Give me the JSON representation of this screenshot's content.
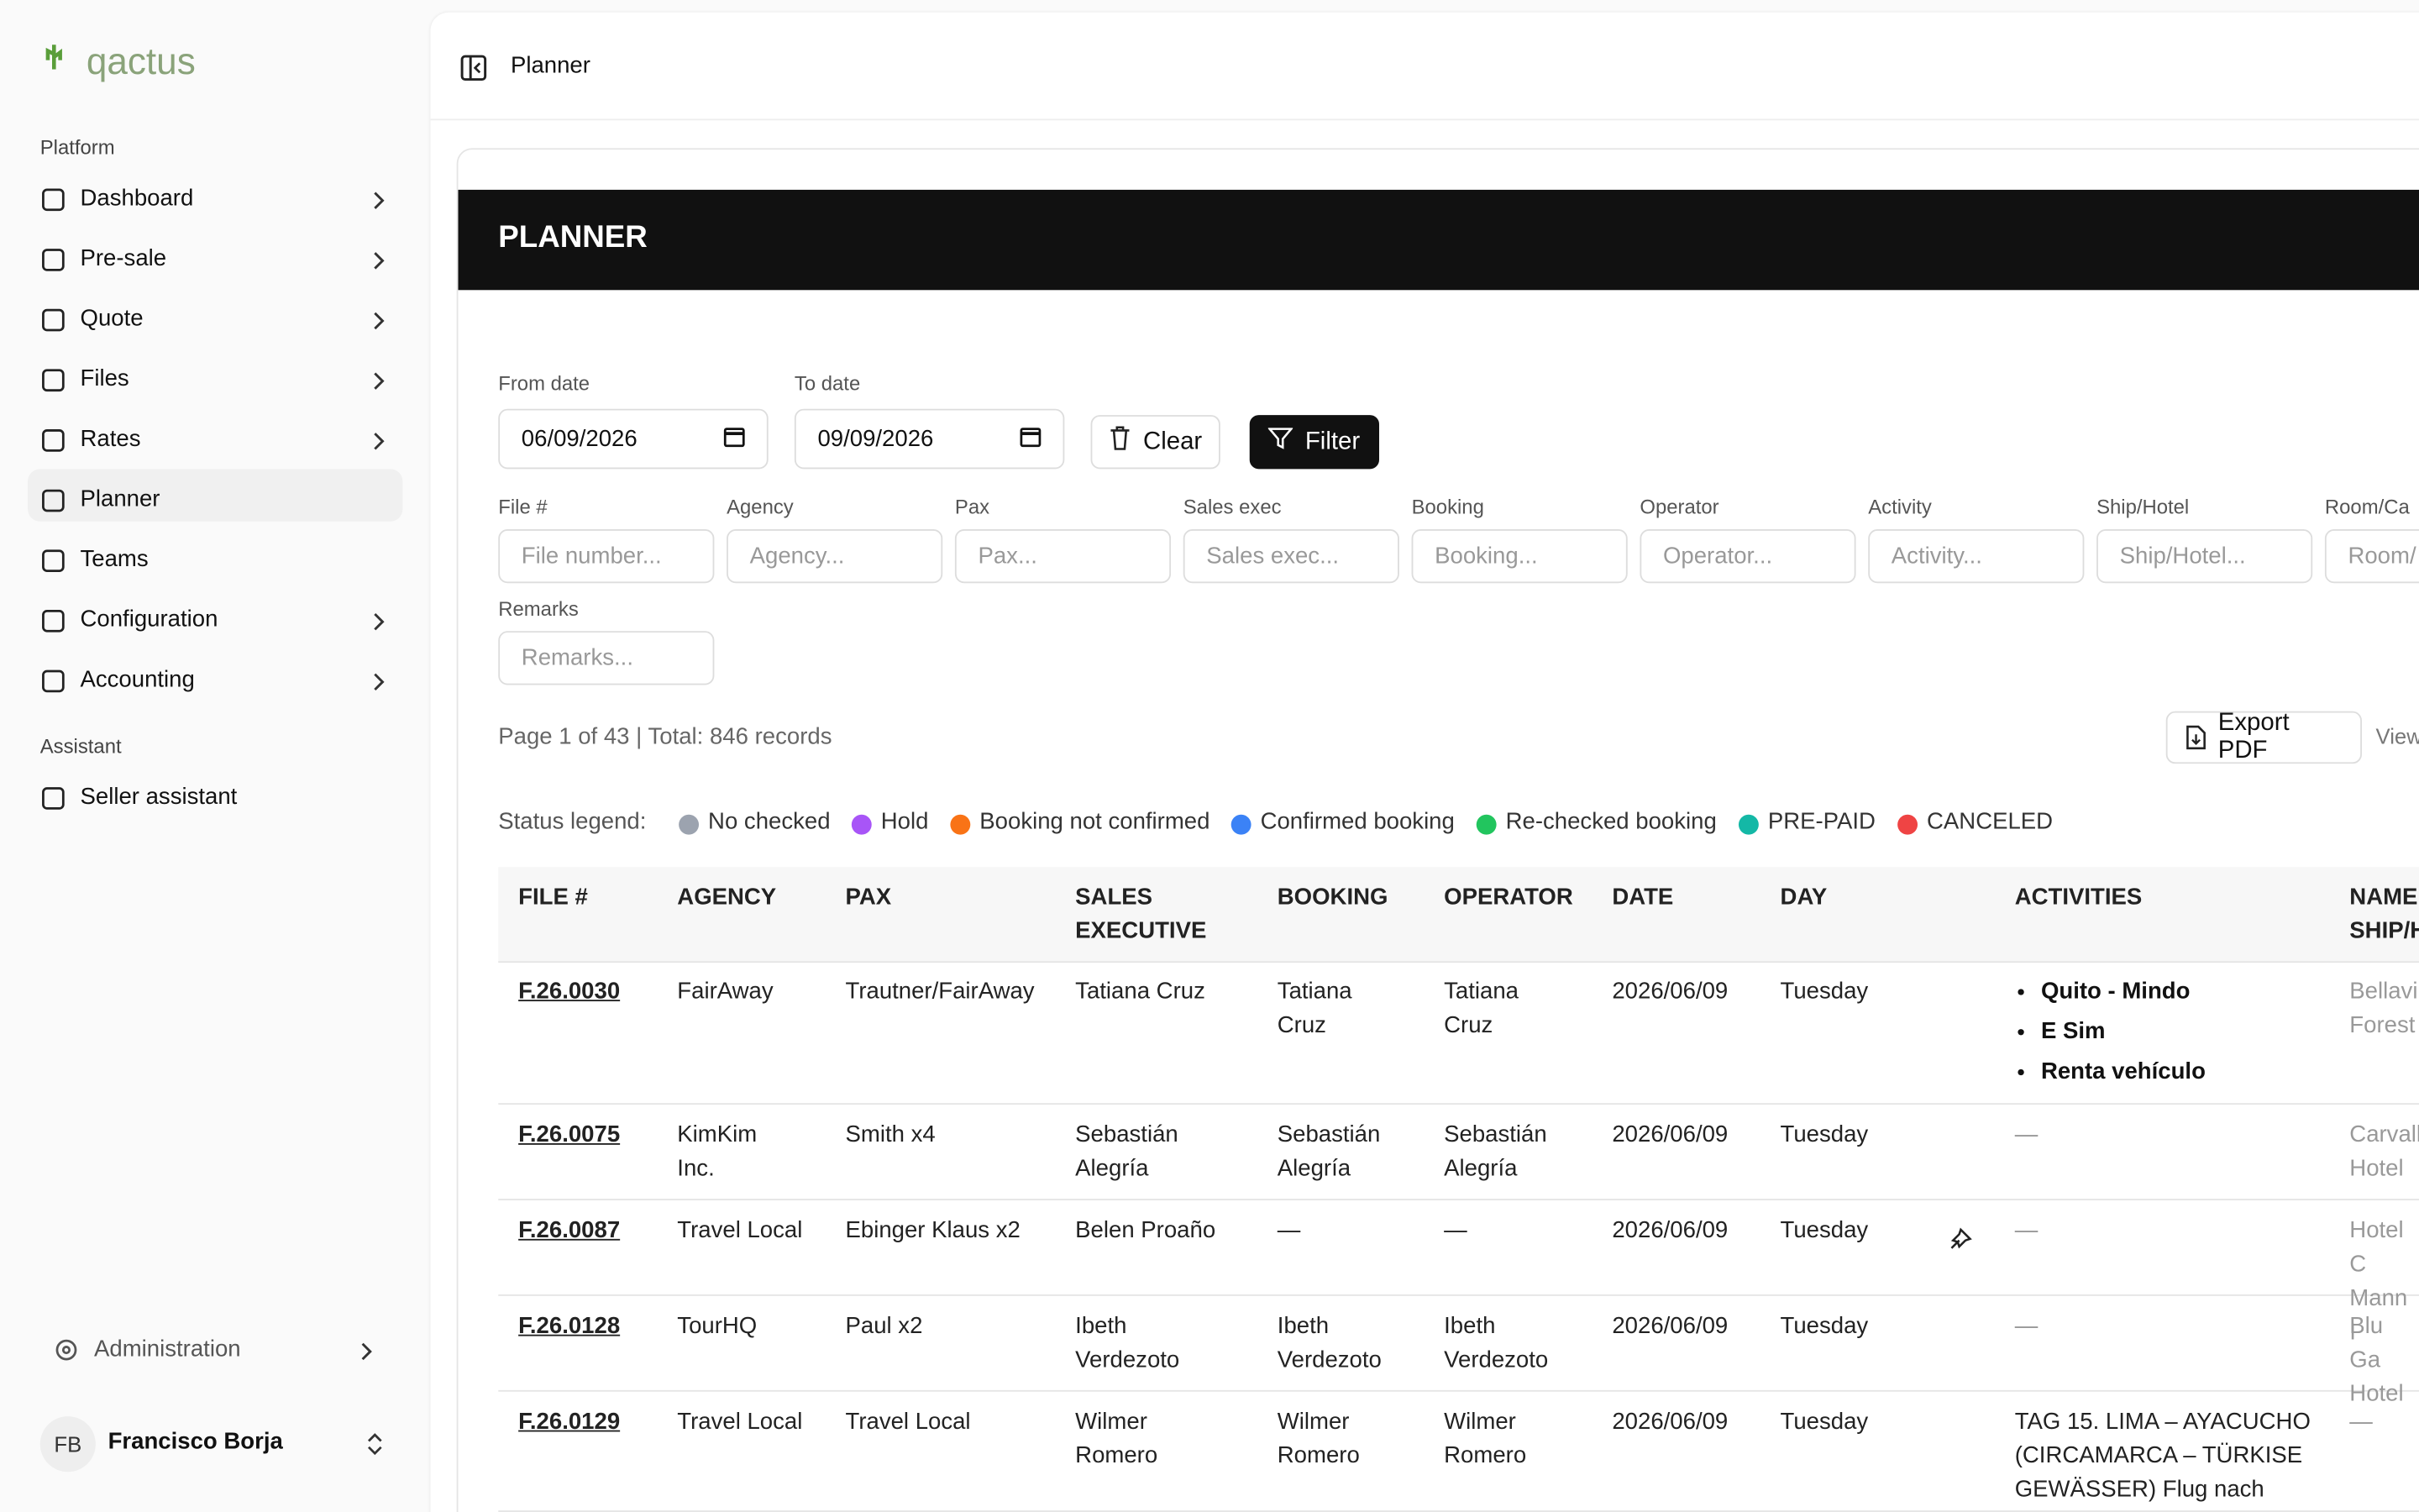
{
  "sidebar": {
    "logo": "qactus",
    "sections": [
      {
        "title": "Platform",
        "items": [
          {
            "label": "Dashboard",
            "expandable": true
          },
          {
            "label": "Pre-sale",
            "expandable": true
          },
          {
            "label": "Quote",
            "expandable": true
          },
          {
            "label": "Files",
            "expandable": true
          },
          {
            "label": "Rates",
            "expandable": true
          },
          {
            "label": "Planner",
            "expandable": false,
            "active": true
          },
          {
            "label": "Teams",
            "expandable": false
          },
          {
            "label": "Configuration",
            "expandable": true
          },
          {
            "label": "Accounting",
            "expandable": true
          }
        ]
      },
      {
        "title": "Assistant",
        "items": [
          {
            "label": "Seller assistant",
            "expandable": false
          }
        ]
      }
    ],
    "admin": "Administration",
    "user": {
      "initials": "FB",
      "name": "Francisco Borja"
    }
  },
  "header": {
    "title": "Planner"
  },
  "panel": {
    "title": "PLANNER",
    "date_filters": [
      {
        "label": "From date",
        "value": "06/09/2026"
      },
      {
        "label": "To date",
        "value": "09/09/2026"
      }
    ],
    "buttons": {
      "clear": "Clear",
      "filter": "Filter"
    },
    "filters": [
      {
        "label": "File #",
        "placeholder": "File number..."
      },
      {
        "label": "Agency",
        "placeholder": "Agency..."
      },
      {
        "label": "Pax",
        "placeholder": "Pax..."
      },
      {
        "label": "Sales exec",
        "placeholder": "Sales exec..."
      },
      {
        "label": "Booking",
        "placeholder": "Booking..."
      },
      {
        "label": "Operator",
        "placeholder": "Operator..."
      },
      {
        "label": "Activity",
        "placeholder": "Activity..."
      },
      {
        "label": "Ship/Hotel",
        "placeholder": "Ship/Hotel..."
      },
      {
        "label": "Room/Ca",
        "placeholder": "Room/"
      },
      {
        "label": "Remarks",
        "placeholder": "Remarks..."
      }
    ],
    "summary": "Page 1 of 43 | Total: 846 records",
    "export": "Export PDF",
    "view": "View",
    "legend": {
      "title": "Status legend:",
      "items": [
        {
          "label": "No checked",
          "color": "#9ca3af"
        },
        {
          "label": "Hold",
          "color": "#a855f7"
        },
        {
          "label": "Booking not confirmed",
          "color": "#f97316"
        },
        {
          "label": "Confirmed booking",
          "color": "#3b82f6"
        },
        {
          "label": "Re-checked booking",
          "color": "#22c55e"
        },
        {
          "label": "PRE-PAID",
          "color": "#14b8a6"
        },
        {
          "label": "CANCELED",
          "color": "#ef4444"
        }
      ]
    },
    "table": {
      "columns": [
        "FILE #",
        "AGENCY",
        "PAX",
        "SALES\nEXECUTIVE",
        "BOOKING",
        "OPERATOR",
        "DATE",
        "DAY",
        "",
        "ACTIVITIES",
        "NAME\nSHIP/H"
      ],
      "rows": [
        {
          "file": "F.26.0030",
          "agency": "FairAway",
          "pax": "Trautner/FairAway",
          "sales": "Tatiana Cruz",
          "booking": "Tatiana\nCruz",
          "operator": "Tatiana\nCruz",
          "date": "2026/06/09",
          "day": "Tuesday",
          "flight": false,
          "activities": [
            "Quito - Mindo",
            "E Sim",
            "Renta vehículo"
          ],
          "ship": "Bellavi\nForest"
        },
        {
          "file": "F.26.0075",
          "agency": "KimKim\nInc.",
          "pax": "Smith x4",
          "sales": "Sebastián\nAlegría",
          "booking": "Sebastián\nAlegría",
          "operator": "Sebastián\nAlegría",
          "date": "2026/06/09",
          "day": "Tuesday",
          "flight": false,
          "activities": "—",
          "ship": "Carvall\nHotel"
        },
        {
          "file": "F.26.0087",
          "agency": "Travel Local",
          "pax": "Ebinger Klaus x2",
          "sales": "Belen Proaño",
          "booking": "—",
          "operator": "—",
          "date": "2026/06/09",
          "day": "Tuesday",
          "flight": true,
          "activities": "—",
          "ship": "Hotel C\nMann I"
        },
        {
          "file": "F.26.0128",
          "agency": "TourHQ",
          "pax": "Paul x2",
          "sales": "Ibeth\nVerdezoto",
          "booking": "Ibeth\nVerdezoto",
          "operator": "Ibeth\nVerdezoto",
          "date": "2026/06/09",
          "day": "Tuesday",
          "flight": false,
          "activities": "—",
          "ship": "Blu Ga\nHotel"
        },
        {
          "file": "F.26.0129",
          "agency": "Travel Local",
          "pax": "Travel Local",
          "sales": "Wilmer\nRomero",
          "booking": "Wilmer\nRomero",
          "operator": "Wilmer\nRomero",
          "date": "2026/06/09",
          "day": "Tuesday",
          "flight": false,
          "activities": "TAG 15. LIMA – AYACUCHO\n(CIRCAMARCA – TÜRKISE\nGEWÄSSER) Flug nach",
          "ship": "—"
        }
      ]
    }
  }
}
